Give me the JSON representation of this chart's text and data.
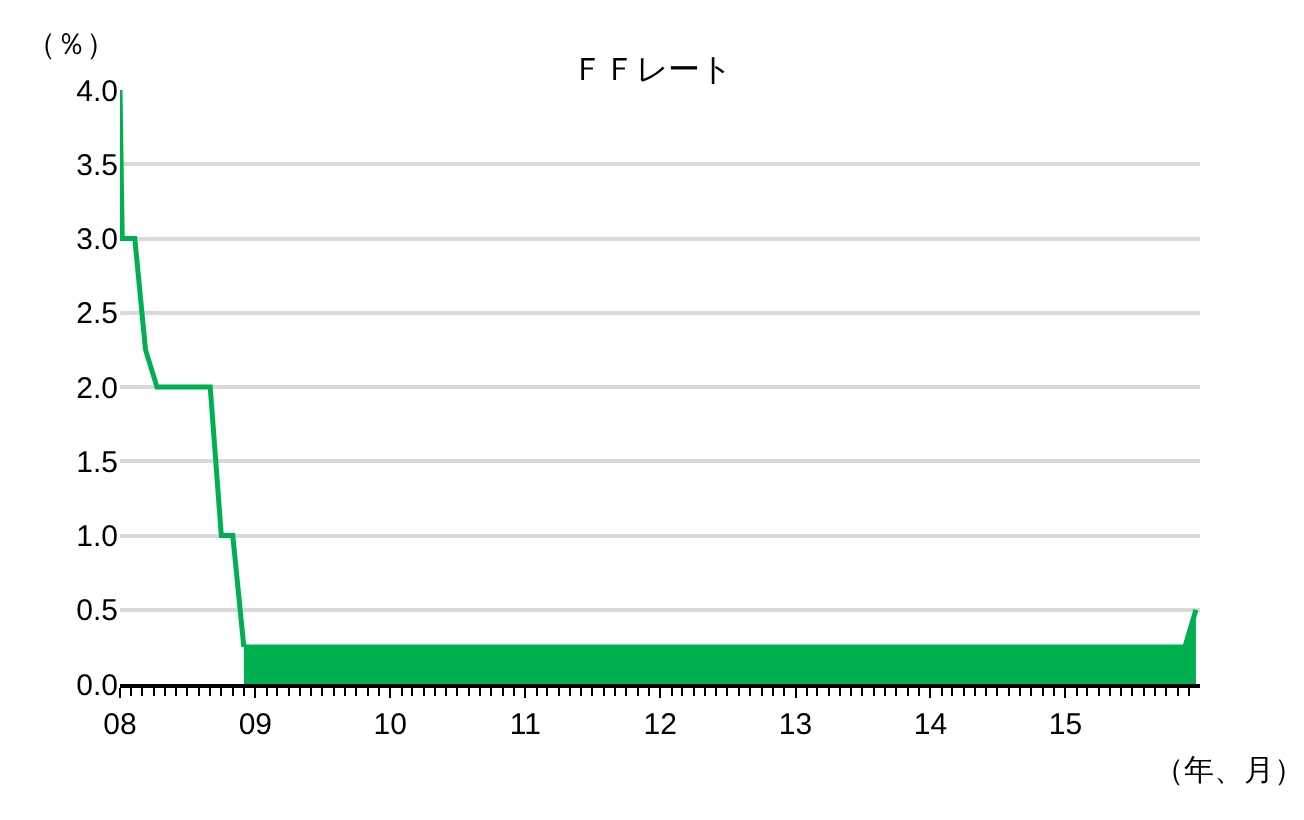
{
  "chart_data": {
    "type": "line",
    "title": "ＦＦレート",
    "xlabel": "（年、月）",
    "ylabel": "（％）",
    "series": [
      {
        "color": "#00b050",
        "x": [
          "2008-01-01",
          "2008-01-07",
          "2008-02-10",
          "2008-03-10",
          "2008-04-10",
          "2008-09-01",
          "2008-10-01",
          "2008-11-01",
          "2008-12-01"
        ],
        "values": [
          4.0,
          3.0,
          3.0,
          2.25,
          2.0,
          2.0,
          1.0,
          1.0,
          0.25
        ]
      },
      {
        "type": "area",
        "color": "#00b050",
        "x": [
          "2008-12-01",
          "2015-11-20",
          "2015-12-20"
        ],
        "values": [
          0.25,
          0.25,
          0.5
        ]
      }
    ],
    "xlim": [
      "2008-01-01",
      "2015-12-31"
    ],
    "xticks": [
      {
        "value": "2008-01-01",
        "label": "08"
      },
      {
        "value": "2009-01-01",
        "label": "09"
      },
      {
        "value": "2010-01-01",
        "label": "10"
      },
      {
        "value": "2011-01-01",
        "label": "11"
      },
      {
        "value": "2012-01-01",
        "label": "12"
      },
      {
        "value": "2013-01-01",
        "label": "13"
      },
      {
        "value": "2014-01-01",
        "label": "14"
      },
      {
        "value": "2015-01-01",
        "label": "15"
      }
    ],
    "ylim": [
      0,
      4
    ],
    "yticks": [
      {
        "value": 0,
        "label": "0.0"
      },
      {
        "value": 0.5,
        "label": "0.5"
      },
      {
        "value": 1,
        "label": "1.0"
      },
      {
        "value": 1.5,
        "label": "1.5"
      },
      {
        "value": 2,
        "label": "2.0"
      },
      {
        "value": 2.5,
        "label": "2.5"
      },
      {
        "value": 3,
        "label": "3.0"
      },
      {
        "value": 3.5,
        "label": "3.5"
      },
      {
        "value": 4,
        "label": "4.0"
      }
    ],
    "grid": "y"
  }
}
